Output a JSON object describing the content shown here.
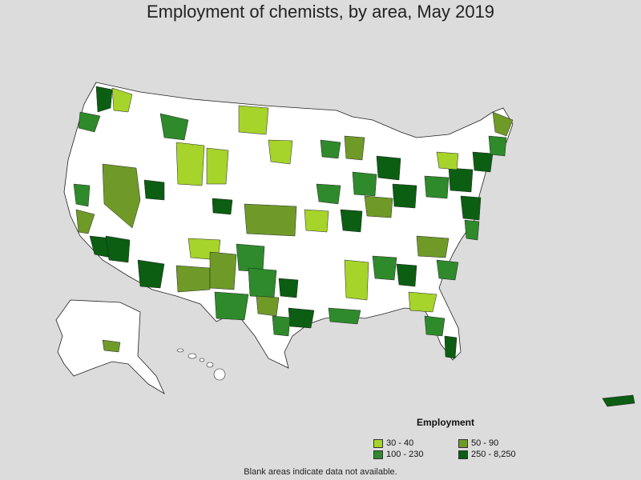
{
  "title": "Employment of chemists, by area, May 2019",
  "legend": {
    "title": "Employment",
    "items": [
      {
        "label": "30 - 40",
        "color": "#a6d42a"
      },
      {
        "label": "50 - 90",
        "color": "#6f9a28"
      },
      {
        "label": "100 - 230",
        "color": "#2e8a2b"
      },
      {
        "label": "250 - 8,250",
        "color": "#0b5e12"
      }
    ]
  },
  "note": "Blank areas indicate data not available.",
  "colors": {
    "background": "#dcdcdc",
    "no_data": "#ffffff",
    "border": "#222222"
  }
}
